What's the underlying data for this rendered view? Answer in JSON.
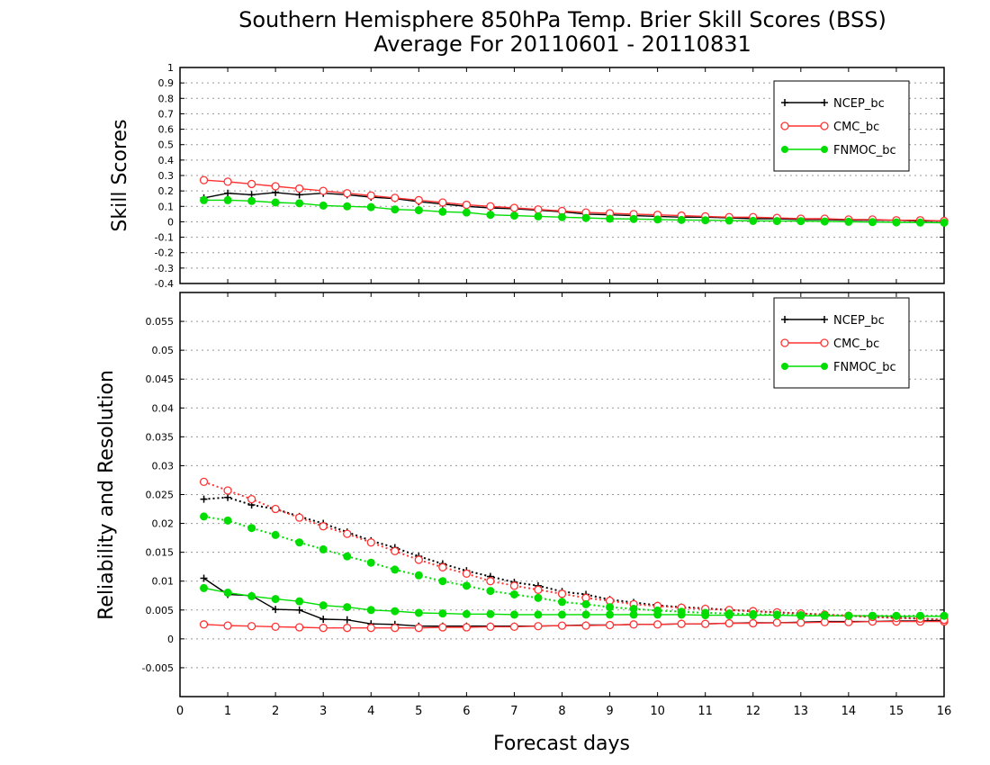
{
  "title_line1": "Southern Hemisphere 850hPa Temp. Brier Skill Scores (BSS)",
  "title_line2": "Average For 20110601 - 20110831",
  "colors": {
    "NCEP_bc": "#000000",
    "CMC_bc": "#ff3333",
    "FNMOC_bc": "#00dd00",
    "grid": "#999999"
  },
  "chart_data": [
    {
      "type": "line",
      "ylabel": "Skill Scores",
      "xlabel": "",
      "xlim": [
        0,
        16
      ],
      "ylim": [
        -0.4,
        1
      ],
      "y_ticks": [
        "-0.4",
        "-0.3",
        "-0.2",
        "-0.1",
        "0",
        "0.1",
        "0.2",
        "0.3",
        "0.4",
        "0.5",
        "0.6",
        "0.7",
        "0.8",
        "0.9",
        "1"
      ],
      "grid": true,
      "legend": [
        "NCEP_bc",
        "CMC_bc",
        "FNMOC_bc"
      ],
      "legend_position": "top-right",
      "x": [
        0.5,
        1,
        1.5,
        2,
        2.5,
        3,
        3.5,
        4,
        4.5,
        5,
        5.5,
        6,
        6.5,
        7,
        7.5,
        8,
        8.5,
        9,
        9.5,
        10,
        10.5,
        11,
        11.5,
        12,
        12.5,
        13,
        13.5,
        14,
        14.5,
        15,
        15.5,
        16
      ],
      "series": [
        {
          "name": "NCEP_bc",
          "marker": "plus",
          "style": "solid",
          "values": [
            0.155,
            0.185,
            0.175,
            0.19,
            0.175,
            0.185,
            0.175,
            0.16,
            0.15,
            0.13,
            0.115,
            0.1,
            0.09,
            0.085,
            0.075,
            0.065,
            0.05,
            0.045,
            0.04,
            0.035,
            0.03,
            0.03,
            0.025,
            0.02,
            0.02,
            0.015,
            0.015,
            0.01,
            0.01,
            0.01,
            0.005,
            0.005
          ]
        },
        {
          "name": "CMC_bc",
          "marker": "circle",
          "style": "solid",
          "values": [
            0.27,
            0.26,
            0.245,
            0.23,
            0.215,
            0.2,
            0.185,
            0.17,
            0.155,
            0.14,
            0.125,
            0.11,
            0.1,
            0.09,
            0.08,
            0.07,
            0.06,
            0.055,
            0.05,
            0.045,
            0.04,
            0.035,
            0.03,
            0.03,
            0.025,
            0.02,
            0.02,
            0.015,
            0.015,
            0.01,
            0.01,
            0.005
          ]
        },
        {
          "name": "FNMOC_bc",
          "marker": "dot",
          "style": "solid",
          "values": [
            0.14,
            0.14,
            0.135,
            0.125,
            0.12,
            0.105,
            0.1,
            0.095,
            0.08,
            0.075,
            0.065,
            0.06,
            0.045,
            0.04,
            0.035,
            0.03,
            0.025,
            0.02,
            0.018,
            0.015,
            0.012,
            0.01,
            0.008,
            0.006,
            0.005,
            0.004,
            0.002,
            0.0,
            -0.002,
            -0.004,
            -0.005,
            -0.006
          ]
        }
      ]
    },
    {
      "type": "line",
      "ylabel": "Reliability and Resolution",
      "xlabel": "Forecast days",
      "xlim": [
        0,
        16
      ],
      "ylim": [
        -0.01,
        0.06
      ],
      "x_ticks": [
        "0",
        "1",
        "2",
        "3",
        "4",
        "5",
        "6",
        "7",
        "8",
        "9",
        "10",
        "11",
        "12",
        "13",
        "14",
        "15",
        "16"
      ],
      "y_ticks": [
        "-0.005",
        "0",
        "0.005",
        "0.01",
        "0.015",
        "0.02",
        "0.025",
        "0.03",
        "0.035",
        "0.04",
        "0.045",
        "0.05",
        "0.055"
      ],
      "grid": true,
      "legend": [
        "NCEP_bc",
        "CMC_bc",
        "FNMOC_bc"
      ],
      "legend_position": "top-right",
      "x": [
        0.5,
        1,
        1.5,
        2,
        2.5,
        3,
        3.5,
        4,
        4.5,
        5,
        5.5,
        6,
        6.5,
        7,
        7.5,
        8,
        8.5,
        9,
        9.5,
        10,
        10.5,
        11,
        11.5,
        12,
        12.5,
        13,
        13.5,
        14,
        14.5,
        15,
        15.5,
        16
      ],
      "series": [
        {
          "name": "NCEP_bc",
          "marker": "plus",
          "style": "solid",
          "values": [
            0.0105,
            0.0077,
            0.0075,
            0.0051,
            0.005,
            0.0034,
            0.0033,
            0.0026,
            0.0025,
            0.0022,
            0.0022,
            0.0022,
            0.0022,
            0.0022,
            0.0022,
            0.0023,
            0.0024,
            0.0024,
            0.0025,
            0.0025,
            0.0026,
            0.0026,
            0.0027,
            0.0028,
            0.0028,
            0.0029,
            0.003,
            0.003,
            0.003,
            0.0031,
            0.0031,
            0.0032
          ]
        },
        {
          "name": "CMC_bc",
          "marker": "circle",
          "style": "solid",
          "values": [
            0.0025,
            0.0023,
            0.0022,
            0.0021,
            0.002,
            0.0019,
            0.0019,
            0.0019,
            0.0019,
            0.0019,
            0.002,
            0.002,
            0.0021,
            0.0021,
            0.0022,
            0.0023,
            0.0023,
            0.0024,
            0.0025,
            0.0025,
            0.0026,
            0.0026,
            0.0027,
            0.0027,
            0.0028,
            0.0028,
            0.0029,
            0.0029,
            0.003,
            0.003,
            0.003,
            0.003
          ]
        },
        {
          "name": "FNMOC_bc",
          "marker": "dot",
          "style": "solid",
          "values": [
            0.0088,
            0.008,
            0.0074,
            0.0069,
            0.0065,
            0.0058,
            0.0055,
            0.005,
            0.0048,
            0.0045,
            0.0044,
            0.0043,
            0.0043,
            0.0042,
            0.0042,
            0.0042,
            0.0042,
            0.0042,
            0.0042,
            0.0042,
            0.0042,
            0.0041,
            0.0041,
            0.0041,
            0.0041,
            0.004,
            0.004,
            0.004,
            0.004,
            0.0039,
            0.0039,
            0.0039
          ]
        },
        {
          "name": "NCEP_bc",
          "marker": "plus",
          "style": "dotted",
          "values": [
            0.0242,
            0.0245,
            0.0232,
            0.0225,
            0.0212,
            0.02,
            0.0185,
            0.017,
            0.0158,
            0.0143,
            0.013,
            0.0118,
            0.0108,
            0.0098,
            0.0092,
            0.0082,
            0.0077,
            0.0068,
            0.0063,
            0.0058,
            0.0055,
            0.0053,
            0.005,
            0.0048,
            0.0046,
            0.0044,
            0.0042,
            0.004,
            0.0038,
            0.0037,
            0.0035,
            0.0033
          ]
        },
        {
          "name": "CMC_bc",
          "marker": "circle",
          "style": "dotted",
          "values": [
            0.0272,
            0.0257,
            0.0242,
            0.0225,
            0.021,
            0.0195,
            0.0182,
            0.0167,
            0.0152,
            0.0137,
            0.0124,
            0.0113,
            0.01,
            0.0092,
            0.0085,
            0.0078,
            0.0071,
            0.0066,
            0.006,
            0.0057,
            0.0054,
            0.0052,
            0.005,
            0.0048,
            0.0046,
            0.0044,
            0.0042,
            0.004,
            0.0038,
            0.0036,
            0.0035,
            0.0033
          ]
        },
        {
          "name": "FNMOC_bc",
          "marker": "dot",
          "style": "dotted",
          "values": [
            0.0212,
            0.0205,
            0.0192,
            0.018,
            0.0167,
            0.0155,
            0.0143,
            0.0132,
            0.012,
            0.011,
            0.01,
            0.0092,
            0.0083,
            0.0077,
            0.0071,
            0.0064,
            0.006,
            0.0055,
            0.0052,
            0.0049,
            0.0047,
            0.0045,
            0.0044,
            0.0043,
            0.0042,
            0.0041,
            0.0041,
            0.004,
            0.004,
            0.004,
            0.004,
            0.004
          ]
        }
      ]
    }
  ]
}
